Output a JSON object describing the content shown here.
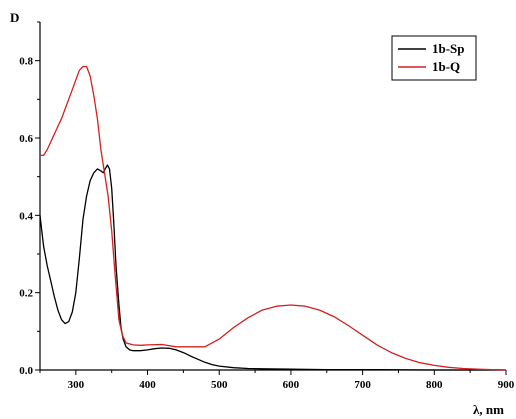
{
  "chart_data": {
    "type": "line",
    "xlabel": "λ, nm",
    "ylabel": "D",
    "xlim": [
      250,
      900
    ],
    "ylim": [
      0,
      0.9
    ],
    "x_ticks": [
      300,
      400,
      500,
      600,
      700,
      800,
      900
    ],
    "y_ticks": [
      0.0,
      0.2,
      0.4,
      0.6,
      0.8
    ],
    "y_tick_labels": [
      "0.0",
      "0.2",
      "0.4",
      "0.6",
      "0.8"
    ],
    "grid": false,
    "legend_position": "top-right",
    "series": [
      {
        "name": "1b-Sp",
        "color": "#000000",
        "x": [
          250,
          255,
          260,
          265,
          270,
          275,
          280,
          285,
          290,
          295,
          300,
          305,
          310,
          315,
          320,
          325,
          330,
          335,
          338,
          341,
          344,
          347,
          350,
          353,
          356,
          360,
          363,
          366,
          370,
          375,
          380,
          390,
          400,
          410,
          420,
          430,
          440,
          450,
          460,
          470,
          480,
          490,
          500,
          520,
          540,
          560,
          600,
          650,
          700,
          800,
          900
        ],
        "y": [
          0.4,
          0.32,
          0.27,
          0.23,
          0.19,
          0.155,
          0.13,
          0.12,
          0.125,
          0.15,
          0.2,
          0.29,
          0.39,
          0.45,
          0.49,
          0.51,
          0.52,
          0.515,
          0.51,
          0.52,
          0.53,
          0.52,
          0.47,
          0.38,
          0.27,
          0.17,
          0.11,
          0.08,
          0.06,
          0.052,
          0.05,
          0.05,
          0.052,
          0.055,
          0.057,
          0.056,
          0.052,
          0.045,
          0.036,
          0.028,
          0.02,
          0.014,
          0.01,
          0.006,
          0.004,
          0.003,
          0.002,
          0.001,
          0.001,
          0.0,
          0.0
        ]
      },
      {
        "name": "1b-Q",
        "color": "#d42020",
        "x": [
          250,
          255,
          260,
          265,
          270,
          275,
          280,
          285,
          290,
          295,
          300,
          305,
          310,
          315,
          320,
          325,
          330,
          335,
          340,
          345,
          350,
          355,
          360,
          365,
          370,
          380,
          390,
          400,
          420,
          440,
          460,
          480,
          500,
          520,
          540,
          560,
          580,
          600,
          620,
          640,
          660,
          680,
          700,
          720,
          740,
          760,
          780,
          800,
          820,
          840,
          860,
          880,
          900
        ],
        "y": [
          0.555,
          0.555,
          0.57,
          0.59,
          0.61,
          0.63,
          0.65,
          0.675,
          0.7,
          0.725,
          0.75,
          0.775,
          0.785,
          0.785,
          0.76,
          0.71,
          0.65,
          0.57,
          0.51,
          0.45,
          0.36,
          0.24,
          0.13,
          0.09,
          0.07,
          0.065,
          0.064,
          0.065,
          0.066,
          0.06,
          0.06,
          0.06,
          0.08,
          0.11,
          0.135,
          0.155,
          0.165,
          0.168,
          0.165,
          0.155,
          0.138,
          0.115,
          0.09,
          0.065,
          0.045,
          0.03,
          0.019,
          0.012,
          0.007,
          0.004,
          0.002,
          0.001,
          0.0
        ]
      }
    ]
  }
}
